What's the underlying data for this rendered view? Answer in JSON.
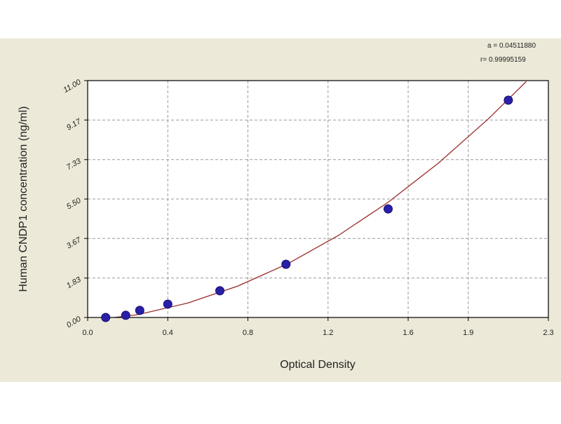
{
  "chart_data": {
    "type": "scatter",
    "annotations": [
      "a = 0.04511880",
      "r= 0.99995159"
    ],
    "x_label": "Optical Density",
    "y_label": "Human CNDP1 concentration (ng/ml)",
    "xlim": [
      0,
      2.3
    ],
    "ylim": [
      0,
      11
    ],
    "xticks": [
      {
        "value": 0,
        "label": "0.0"
      },
      0.4,
      0.8,
      1.2,
      1.6,
      1.9,
      2.3
    ],
    "yticks": [
      {
        "value": 0,
        "label": "0.00"
      },
      1.83,
      3.67,
      {
        "value": 5.5,
        "label": "5.50"
      },
      7.33,
      9.17,
      {
        "value": 11,
        "label": "11.00"
      }
    ],
    "grid": true,
    "series": [
      {
        "color": "#2a1fa8",
        "x": [
          0.09,
          0.19,
          0.26,
          0.4,
          0.66,
          0.99,
          1.5,
          2.1
        ],
        "values": [
          0,
          0.1,
          0.33,
          0.62,
          1.24,
          2.47,
          5.04,
          10.09
        ]
      },
      {
        "color": "#9b2a2a",
        "kind": "line",
        "x": [
          0,
          0.25,
          0.5,
          0.75,
          1.0,
          1.25,
          1.5,
          1.75,
          2.0,
          2.19
        ],
        "values": [
          -0.15,
          0.13,
          0.67,
          1.46,
          2.5,
          3.8,
          5.35,
          7.16,
          9.22,
          10.96
        ]
      }
    ]
  }
}
